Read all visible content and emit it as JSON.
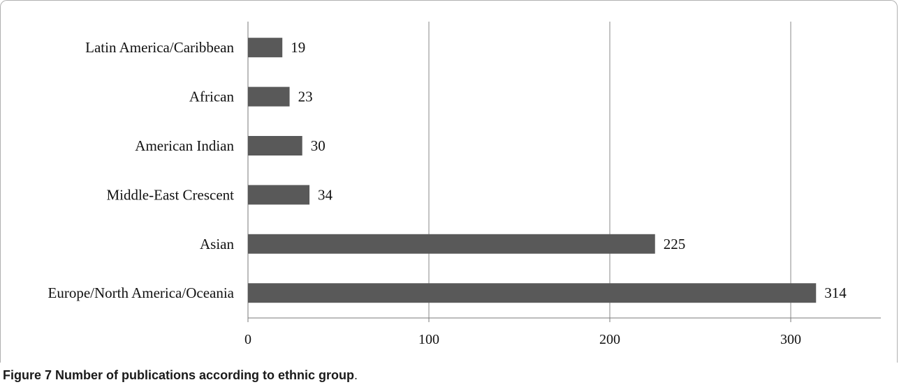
{
  "figure": {
    "label": "Figure 7",
    "caption": "Number of publications according to ethnic group",
    "period": "."
  },
  "chart_data": {
    "type": "bar",
    "orientation": "horizontal",
    "title": "",
    "xlabel": "",
    "ylabel": "",
    "categories": [
      "Latin America/Caribbean",
      "African",
      "American Indian",
      "Middle-East Crescent",
      "Asian",
      "Europe/North America/Oceania"
    ],
    "values": [
      19,
      23,
      30,
      34,
      225,
      314
    ],
    "xlim": [
      0,
      350
    ],
    "xticks": [
      0,
      100,
      200,
      300
    ],
    "grid": "vertical",
    "bar_color": "#595959",
    "legend": "none"
  }
}
